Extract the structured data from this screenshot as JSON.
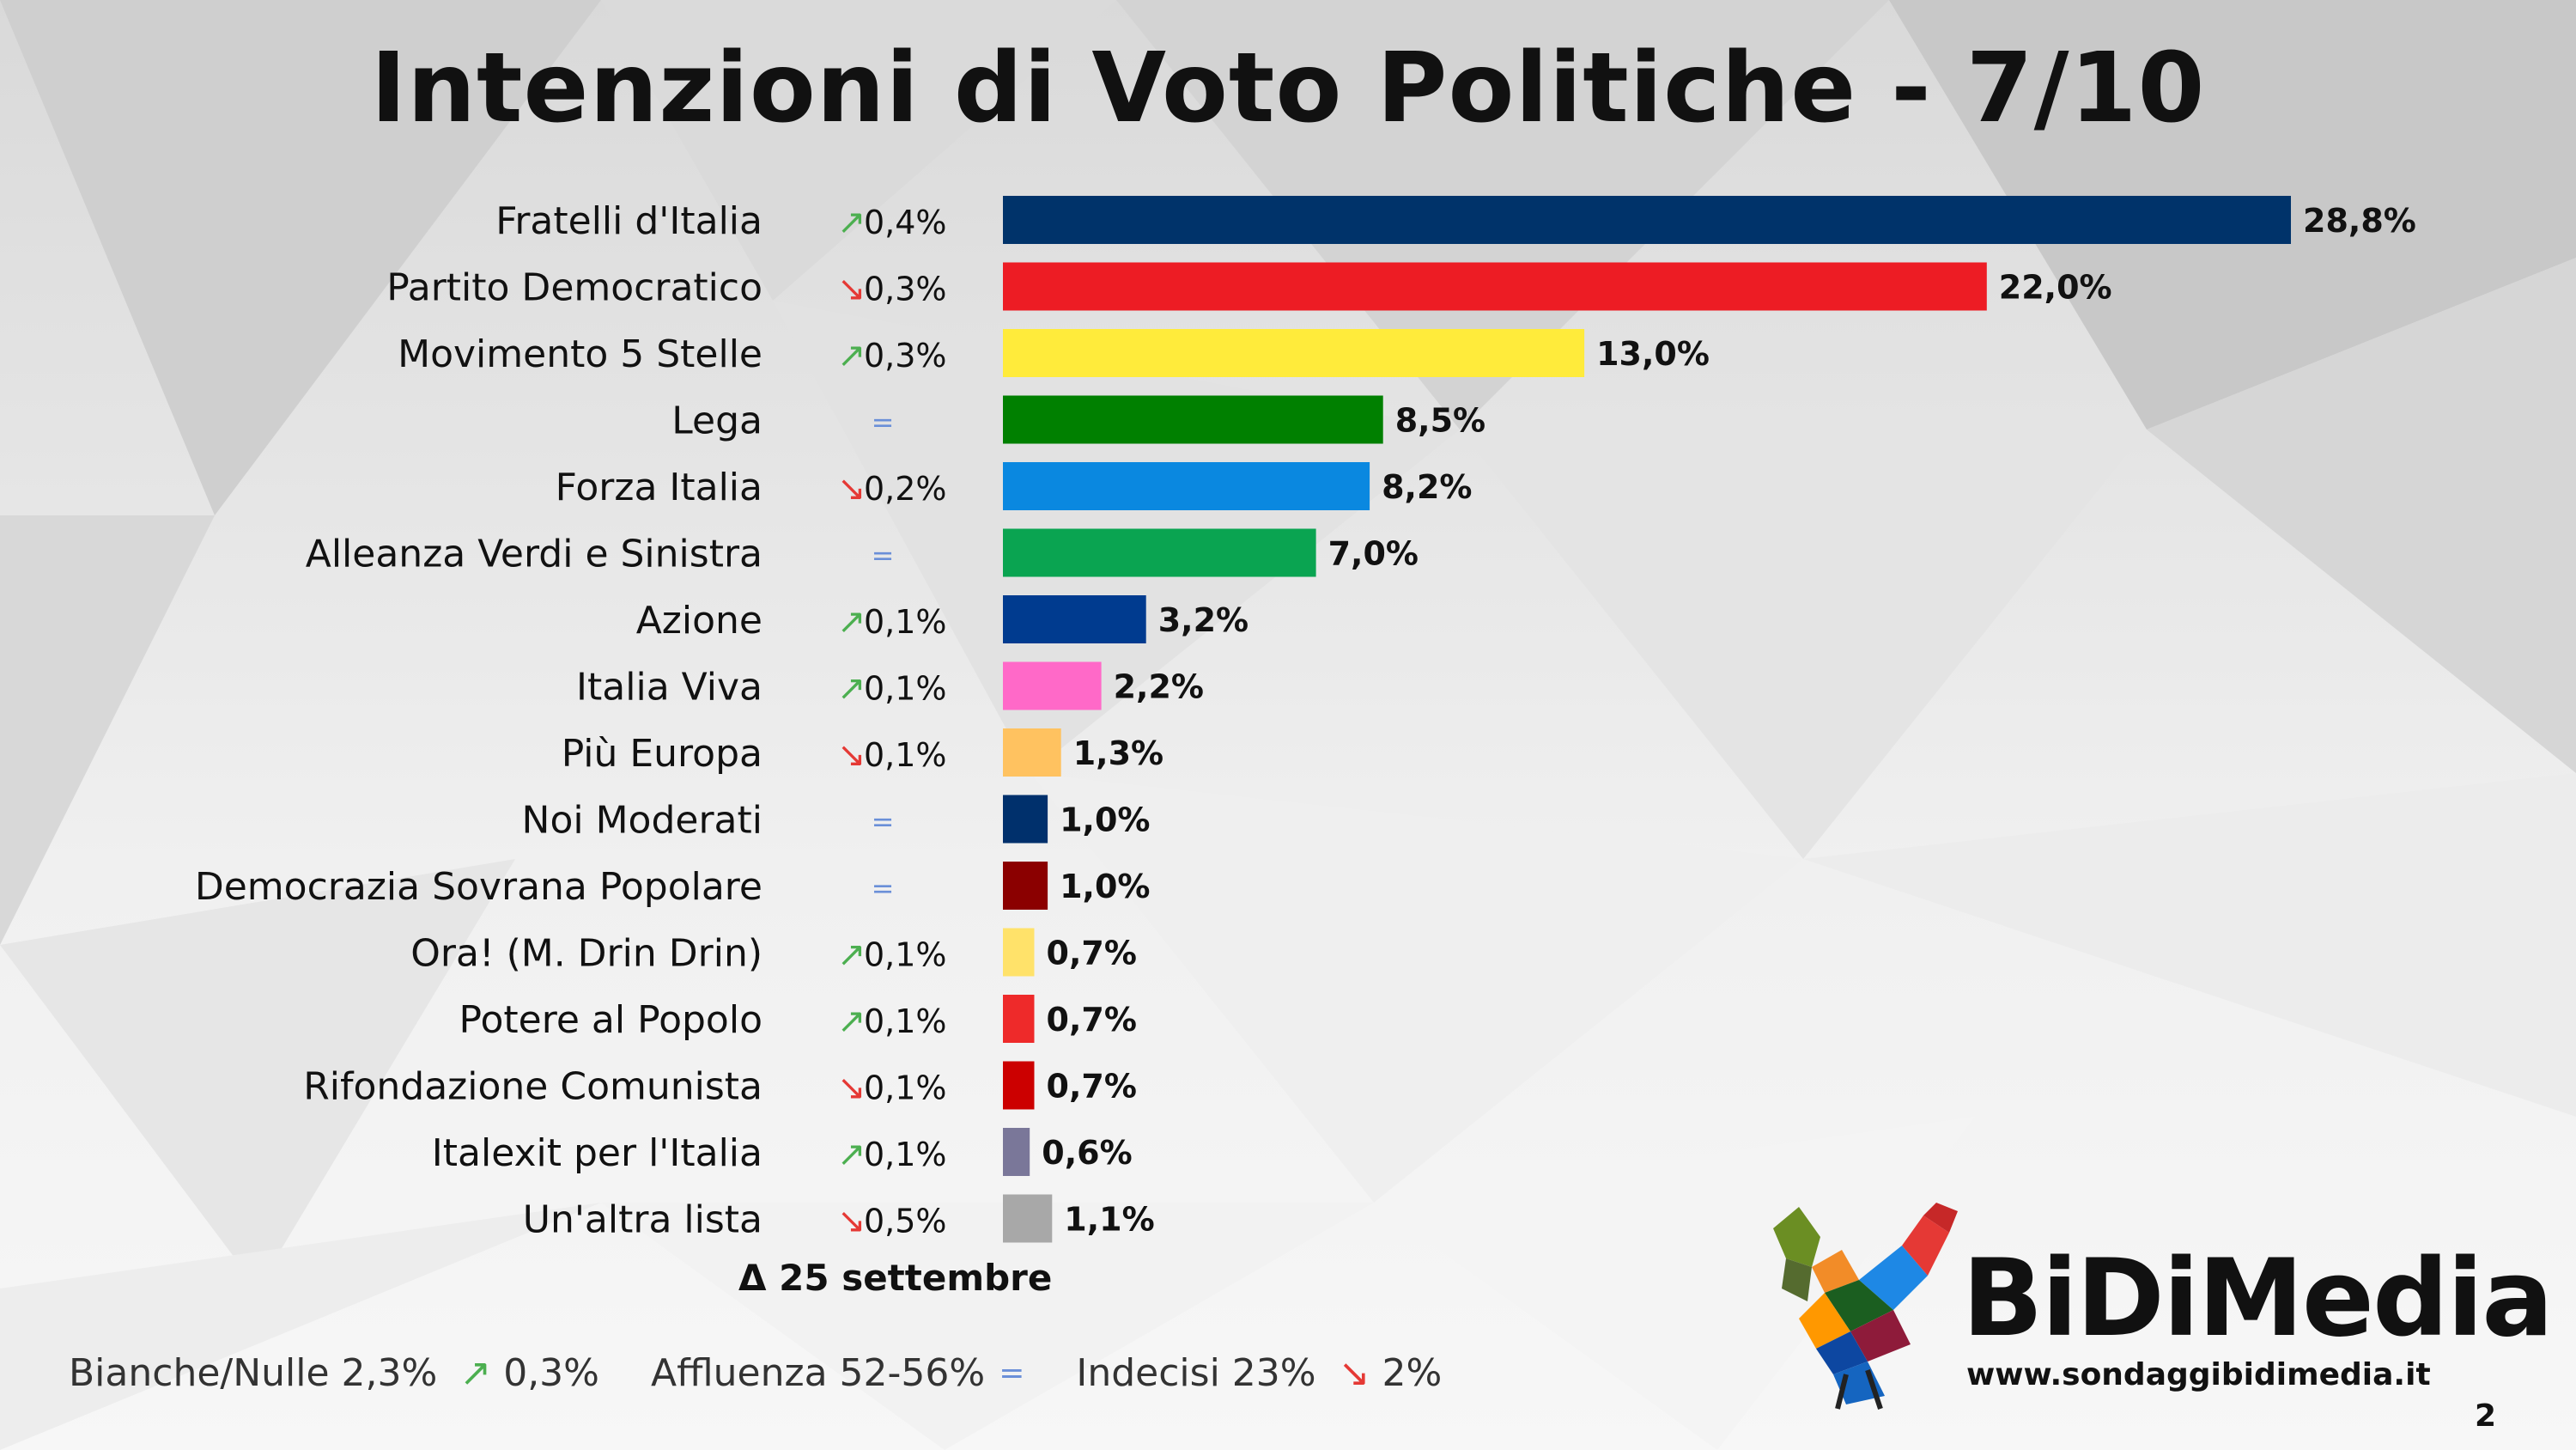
{
  "title": "Intenzioni di Voto Politiche  - 7/10",
  "delta_label": "Δ 25 settembre",
  "chart_data": {
    "type": "bar",
    "orientation": "horizontal",
    "title": "Intenzioni di Voto Politiche  - 7/10",
    "categories": [
      "Fratelli d'Italia",
      "Partito Democratico",
      "Movimento 5 Stelle",
      "Lega",
      "Forza Italia",
      "Alleanza Verdi e Sinistra",
      "Azione",
      "Italia Viva",
      "Più Europa",
      "Noi Moderati",
      "Democrazia Sovrana Popolare",
      "Ora! (M. Drin Drin)",
      "Potere al Popolo",
      "Rifondazione Comunista",
      "Italexit per l'Italia",
      "Un'altra lista"
    ],
    "values": [
      28.8,
      22.0,
      13.0,
      8.5,
      8.2,
      7.0,
      3.2,
      2.2,
      1.3,
      1.0,
      1.0,
      0.7,
      0.7,
      0.7,
      0.6,
      1.1
    ],
    "value_labels": [
      "28,8%",
      "22,0%",
      "13,0%",
      "8,5%",
      "8,2%",
      "7,0%",
      "3,2%",
      "2,2%",
      "1,3%",
      "1,0%",
      "1,0%",
      "0,7%",
      "0,7%",
      "0,7%",
      "0,6%",
      "1,1%"
    ],
    "colors": [
      "#00336a",
      "#ed1c24",
      "#ffeb3b",
      "#008000",
      "#0a88e0",
      "#0aa451",
      "#003b8f",
      "#ff69c8",
      "#ffc260",
      "#00306c",
      "#8b0000",
      "#ffe26a",
      "#ee2a2a",
      "#cc0000",
      "#7a7799",
      "#a8a8a8"
    ],
    "changes": [
      {
        "dir": "up",
        "text": "0,4%"
      },
      {
        "dir": "down",
        "text": "0,3%"
      },
      {
        "dir": "up",
        "text": "0,3%"
      },
      {
        "dir": "eq",
        "text": ""
      },
      {
        "dir": "down",
        "text": "0,2%"
      },
      {
        "dir": "eq",
        "text": ""
      },
      {
        "dir": "up",
        "text": "0,1%"
      },
      {
        "dir": "up",
        "text": "0,1%"
      },
      {
        "dir": "down",
        "text": "0,1%"
      },
      {
        "dir": "eq",
        "text": ""
      },
      {
        "dir": "eq",
        "text": ""
      },
      {
        "dir": "up",
        "text": "0,1%"
      },
      {
        "dir": "up",
        "text": "0,1%"
      },
      {
        "dir": "down",
        "text": "0,1%"
      },
      {
        "dir": "up",
        "text": "0,1%"
      },
      {
        "dir": "down",
        "text": "0,5%"
      }
    ],
    "change_symbols": {
      "up": "↗",
      "down": "↘",
      "eq": "="
    },
    "change_colors": {
      "up": "#4caf50",
      "down": "#e53935",
      "eq": "#6a8fd8"
    },
    "unit": "%",
    "xlim": [
      0,
      28.8
    ]
  },
  "footer": {
    "bianche": "Bianche/Nulle 2,3%",
    "bianche_arrow": "↗",
    "bianche_change": "0,3%",
    "affluenza": "Affluenza 52-56%",
    "affluenza_eq": "=",
    "indecisi": "Indecisi 23%",
    "indecisi_arrow": "↘",
    "indecisi_change": "2%"
  },
  "logo": {
    "brand": "BiDiMedia",
    "website": "www.sondaggibidimedia.it",
    "icon": "rooster-logo-icon"
  },
  "page_number": "2"
}
